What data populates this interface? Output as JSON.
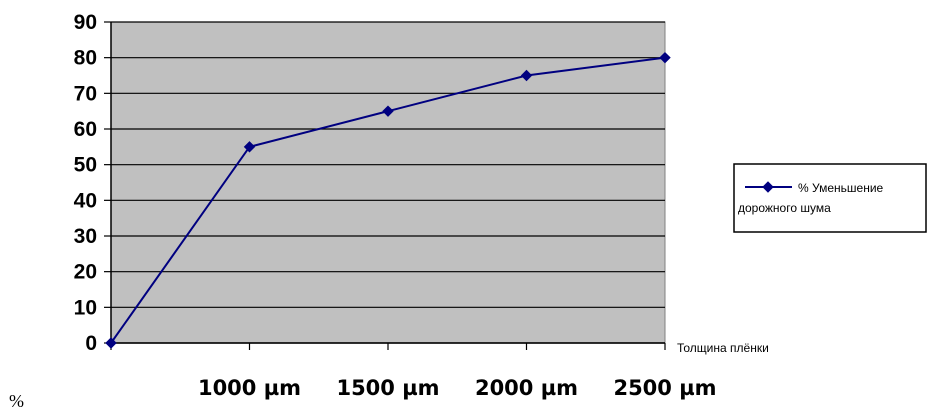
{
  "chart_data": {
    "type": "line",
    "x_labels": [
      "",
      "1000 µm",
      "1500 µm",
      "2000 µm",
      "2500 µm"
    ],
    "x_axis_title": "Толщина плёнки",
    "y_unit": "%",
    "y_ticks": [
      "0",
      "10",
      "20",
      "30",
      "40",
      "50",
      "60",
      "70",
      "80",
      "90"
    ],
    "ylim": [
      0,
      90
    ],
    "grid": true,
    "legend_position": "right",
    "plot_background": "#C0C0C0",
    "series": [
      {
        "name": "% Уменьшение дорожного шума",
        "color": "#000080",
        "marker": "diamond",
        "values": [
          0,
          55,
          65,
          75,
          80
        ]
      }
    ],
    "legend": {
      "line1": "% Уменьшение",
      "line2": "дорожного шума"
    }
  }
}
